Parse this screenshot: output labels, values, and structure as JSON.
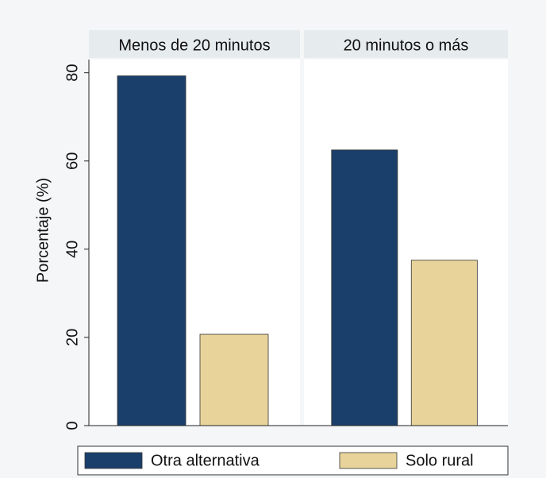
{
  "chart_data": {
    "type": "bar",
    "facets": [
      "Menos de 20 minutos",
      "20 minutos o más"
    ],
    "y_label": "Porcentaje (%)",
    "series": [
      {
        "name": "Otra alternativa",
        "color": "#1a3f6b",
        "values": [
          79.3,
          62.5
        ]
      },
      {
        "name": "Solo rural",
        "color": "#e8d49b",
        "values": [
          20.7,
          37.5
        ]
      }
    ],
    "ylim": [
      0,
      83
    ],
    "yticks": [
      0,
      20,
      40,
      60,
      80
    ]
  }
}
